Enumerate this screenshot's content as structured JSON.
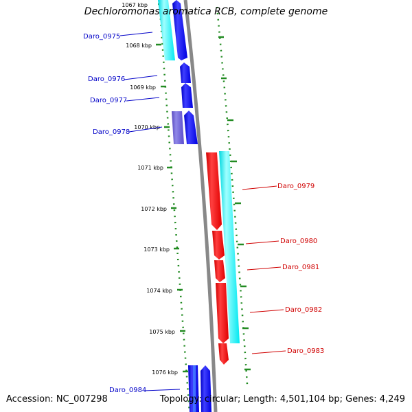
{
  "title": "Dechloromonas aromatica RCB, complete genome",
  "footer": {
    "accession": "Accession: NC_007298",
    "stats": "Topology: circular; Length: 4,501,104 bp; Genes: 4,249"
  },
  "ruler": {
    "ticks": [
      "1067 kbp",
      "1068 kbp",
      "1069 kbp",
      "1070 kbp",
      "1071 kbp",
      "1072 kbp",
      "1073 kbp",
      "1074 kbp",
      "1075 kbp",
      "1076 kbp"
    ]
  },
  "genes": {
    "left": [
      "Daro_0975",
      "Daro_0976",
      "Daro_0977",
      "Daro_0978",
      "Daro_0984"
    ],
    "right": [
      "Daro_0979",
      "Daro_0980",
      "Daro_0981",
      "Daro_0982",
      "Daro_0983"
    ]
  },
  "colors": {
    "forward_cds": "#0000ff",
    "reverse_cds": "#ff0000",
    "forward_feature": "#00ffff",
    "reverse_feature": "#00ffff",
    "overlap_feature": "#6a5acd",
    "ruler": "#228b22",
    "backbone": "#888888"
  }
}
